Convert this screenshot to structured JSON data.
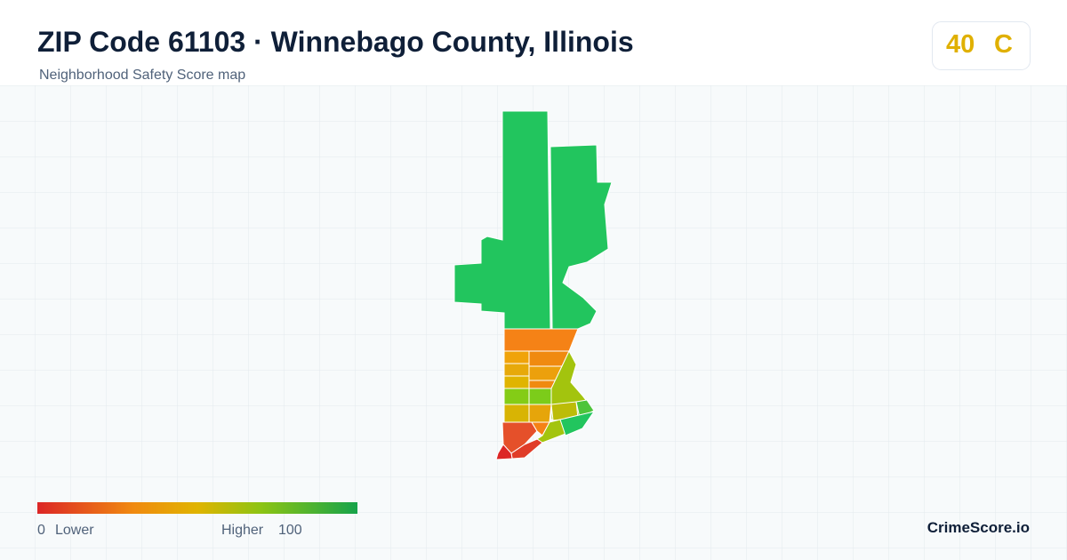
{
  "header": {
    "title": "ZIP Code 61103 · Winnebago County, Illinois",
    "subtitle": "Neighborhood Safety Score map"
  },
  "score": {
    "value": 40,
    "grade": "C"
  },
  "legend": {
    "min": 0,
    "min_label": "Lower",
    "max_label": "Higher",
    "max": 100
  },
  "brand": "CrimeScore.io"
}
